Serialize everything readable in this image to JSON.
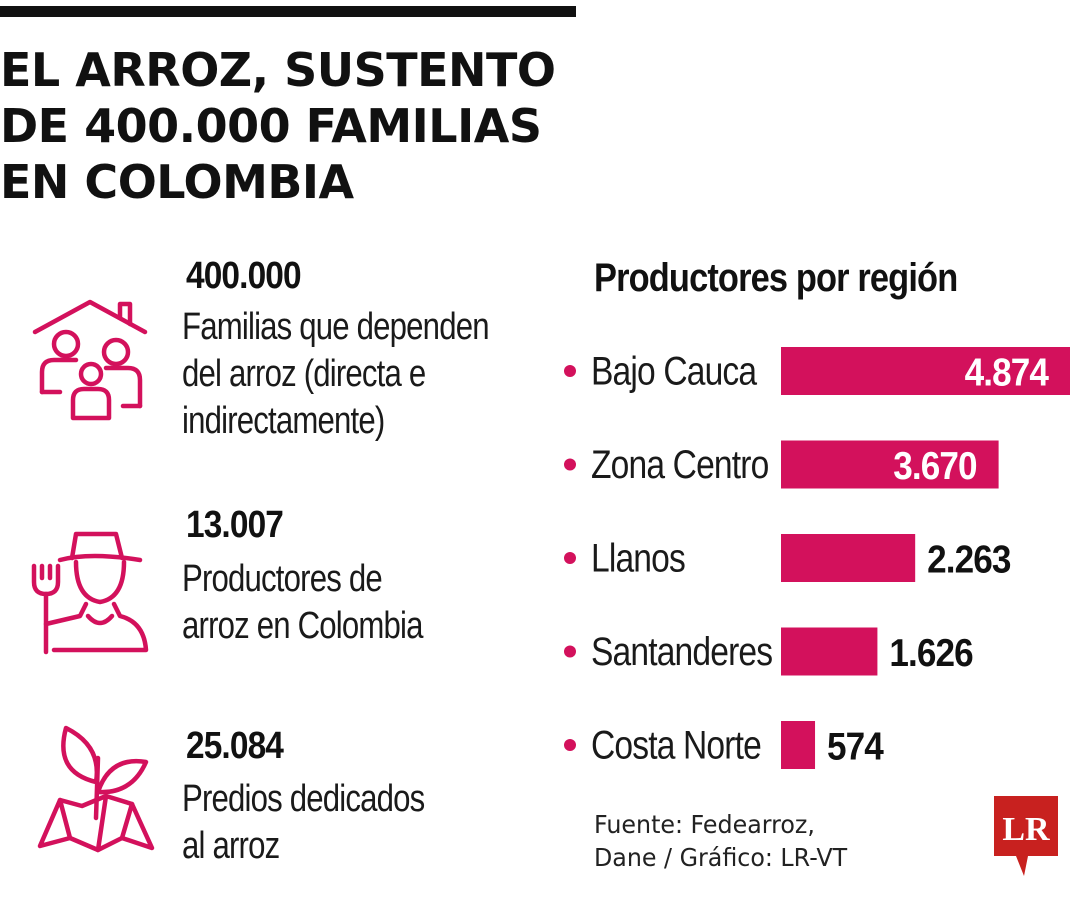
{
  "header": {
    "title_lines": [
      "EL ARROZ, SUSTENTO",
      "DE 400.000 FAMILIAS",
      "EN COLOMBIA"
    ]
  },
  "stats": [
    {
      "icon": "family-house-icon",
      "value": "400.000",
      "lines": [
        "Familias que dependen",
        "del arroz (directa e",
        "indirectamente)"
      ]
    },
    {
      "icon": "farmer-icon",
      "value": "13.007",
      "lines": [
        "Productores de",
        "arroz en Colombia"
      ]
    },
    {
      "icon": "plant-map-icon",
      "value": "25.084",
      "lines": [
        "Predios dedicados",
        "al arroz"
      ]
    }
  ],
  "chart_data": {
    "type": "bar",
    "orientation": "horizontal",
    "title": "Productores por región",
    "categories": [
      "Bajo Cauca",
      "Zona Centro",
      "Llanos",
      "Santanderes",
      "Costa Norte"
    ],
    "values": [
      4874,
      3670,
      2263,
      1626,
      574
    ],
    "value_labels": [
      "4.874",
      "3.670",
      "2.263",
      "1.626",
      "574"
    ],
    "grid": false,
    "legend": "none"
  },
  "footer": {
    "source_lines": [
      "Fuente: Fedearroz,",
      "Dane / Gráfico: LR-VT"
    ],
    "logo_text": "LR"
  },
  "colors": {
    "accent": "#d3115c",
    "text": "#111111",
    "logo_bg": "#c8211f"
  }
}
